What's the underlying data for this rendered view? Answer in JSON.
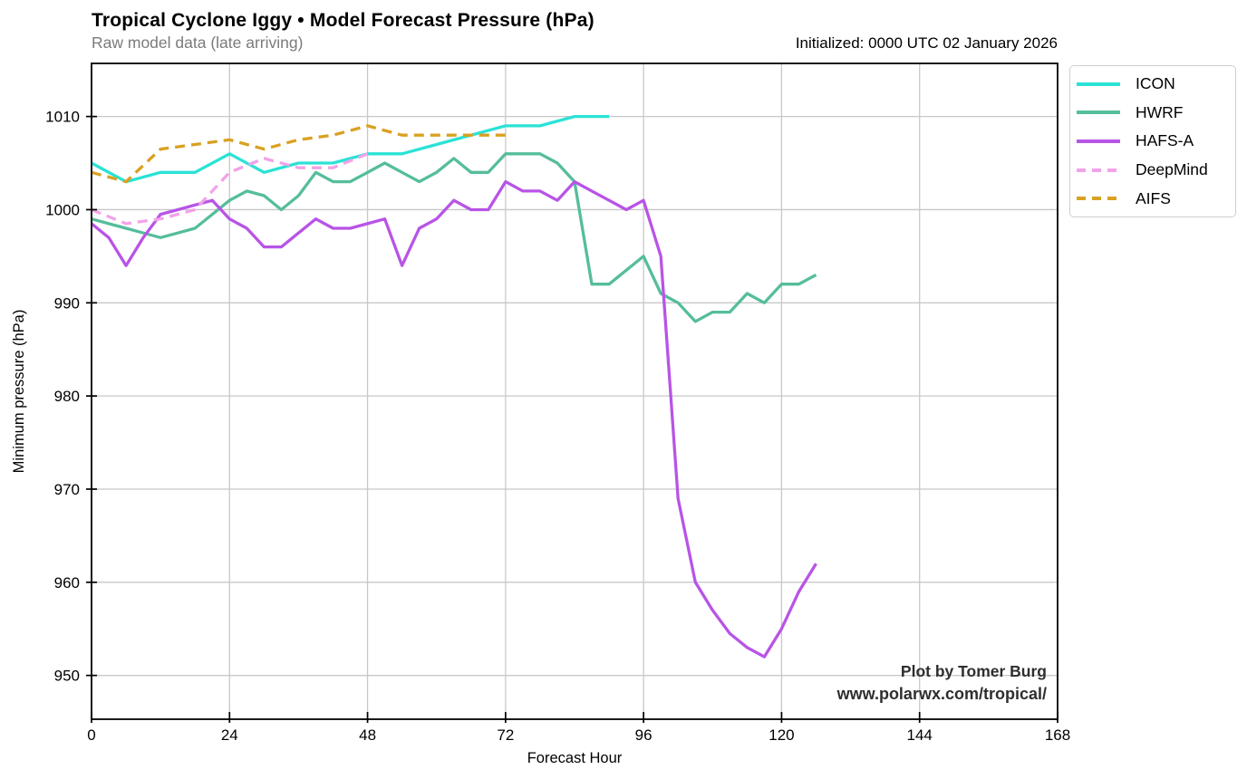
{
  "header": {
    "title": "Tropical Cyclone Iggy • Model Forecast Pressure (hPa)",
    "subtitle": "Raw model data (late arriving)",
    "initialized": "Initialized: 0000 UTC 02 January 2026"
  },
  "watermark": {
    "line1": "Plot by Tomer Burg",
    "line2": "www.polarwx.com/tropical/"
  },
  "chart_data": {
    "type": "line",
    "title": "Tropical Cyclone Iggy • Model Forecast Pressure (hPa)",
    "xlabel": "Forecast Hour",
    "ylabel": "Minimum pressure (hPa)",
    "xlim": [
      0,
      168
    ],
    "ylim": [
      945.3,
      1015.7
    ],
    "xticks": [
      0,
      24,
      48,
      72,
      96,
      120,
      144,
      168
    ],
    "yticks": [
      950,
      960,
      970,
      980,
      990,
      1000,
      1010
    ],
    "grid": true,
    "grid_color": "#c8c8c8",
    "legend_position": "outside-top-right",
    "series": [
      {
        "name": "ICON",
        "color": "#2be2d6",
        "style": "solid",
        "hours": [
          0,
          6,
          12,
          18,
          24,
          30,
          36,
          42,
          48,
          54,
          60,
          66,
          72,
          78,
          84,
          90
        ],
        "values": [
          1005,
          1003,
          1004,
          1004,
          1006,
          1004,
          1005,
          1005,
          1006,
          1006,
          1007,
          1008,
          1009,
          1009,
          1010,
          1010
        ]
      },
      {
        "name": "HWRF",
        "color": "#55bd9c",
        "style": "solid",
        "hours": [
          0,
          3,
          6,
          9,
          12,
          15,
          18,
          21,
          24,
          27,
          30,
          33,
          36,
          39,
          42,
          45,
          48,
          51,
          54,
          57,
          60,
          63,
          66,
          69,
          72,
          75,
          78,
          81,
          84,
          87,
          90,
          93,
          96,
          99,
          102,
          105,
          108,
          111,
          114,
          117,
          120,
          123,
          126
        ],
        "values": [
          999,
          998.5,
          998,
          997.5,
          997,
          997.5,
          998,
          999.5,
          1001,
          1002,
          1001.5,
          1000,
          1001.5,
          1004,
          1003,
          1003,
          1004,
          1005,
          1004,
          1003,
          1004,
          1005.5,
          1004,
          1004,
          1006,
          1006,
          1006,
          1005,
          1003,
          992,
          992,
          993.5,
          995,
          991,
          990,
          988,
          989,
          989,
          991,
          990,
          992,
          992,
          993
        ]
      },
      {
        "name": "HAFS-A",
        "color": "#b854e6",
        "style": "solid",
        "hours": [
          0,
          3,
          6,
          9,
          12,
          15,
          18,
          21,
          24,
          27,
          30,
          33,
          36,
          39,
          42,
          45,
          48,
          51,
          54,
          57,
          60,
          63,
          66,
          69,
          72,
          75,
          78,
          81,
          84,
          87,
          90,
          93,
          96,
          99,
          102,
          105,
          108,
          111,
          114,
          117,
          120,
          123,
          126
        ],
        "values": [
          998.5,
          997,
          994,
          997,
          999.5,
          1000,
          1000.5,
          1001,
          999,
          998,
          996,
          996,
          997.5,
          999,
          998,
          998,
          998.5,
          999,
          994,
          998,
          999,
          1001,
          1000,
          1000,
          1003,
          1002,
          1002,
          1001,
          1003,
          1002,
          1001,
          1000,
          1001,
          995,
          969,
          960,
          957,
          954.5,
          953,
          952,
          955,
          959,
          962
        ]
      },
      {
        "name": "DeepMind",
        "color": "#f2a2e8",
        "style": "dashed",
        "hours": [
          0,
          6,
          12,
          18,
          24,
          30,
          36,
          42,
          48
        ],
        "values": [
          1000,
          998.5,
          999,
          1000,
          1004,
          1005.5,
          1004.5,
          1004.5,
          1006
        ]
      },
      {
        "name": "AIFS",
        "color": "#d9a122",
        "style": "dashed",
        "hours": [
          0,
          6,
          12,
          18,
          24,
          30,
          36,
          42,
          48,
          54,
          60,
          66,
          72
        ],
        "values": [
          1004,
          1003,
          1006.5,
          1007,
          1007.5,
          1006.5,
          1007.5,
          1008,
          1009,
          1008,
          1008,
          1008,
          1008
        ]
      }
    ]
  }
}
